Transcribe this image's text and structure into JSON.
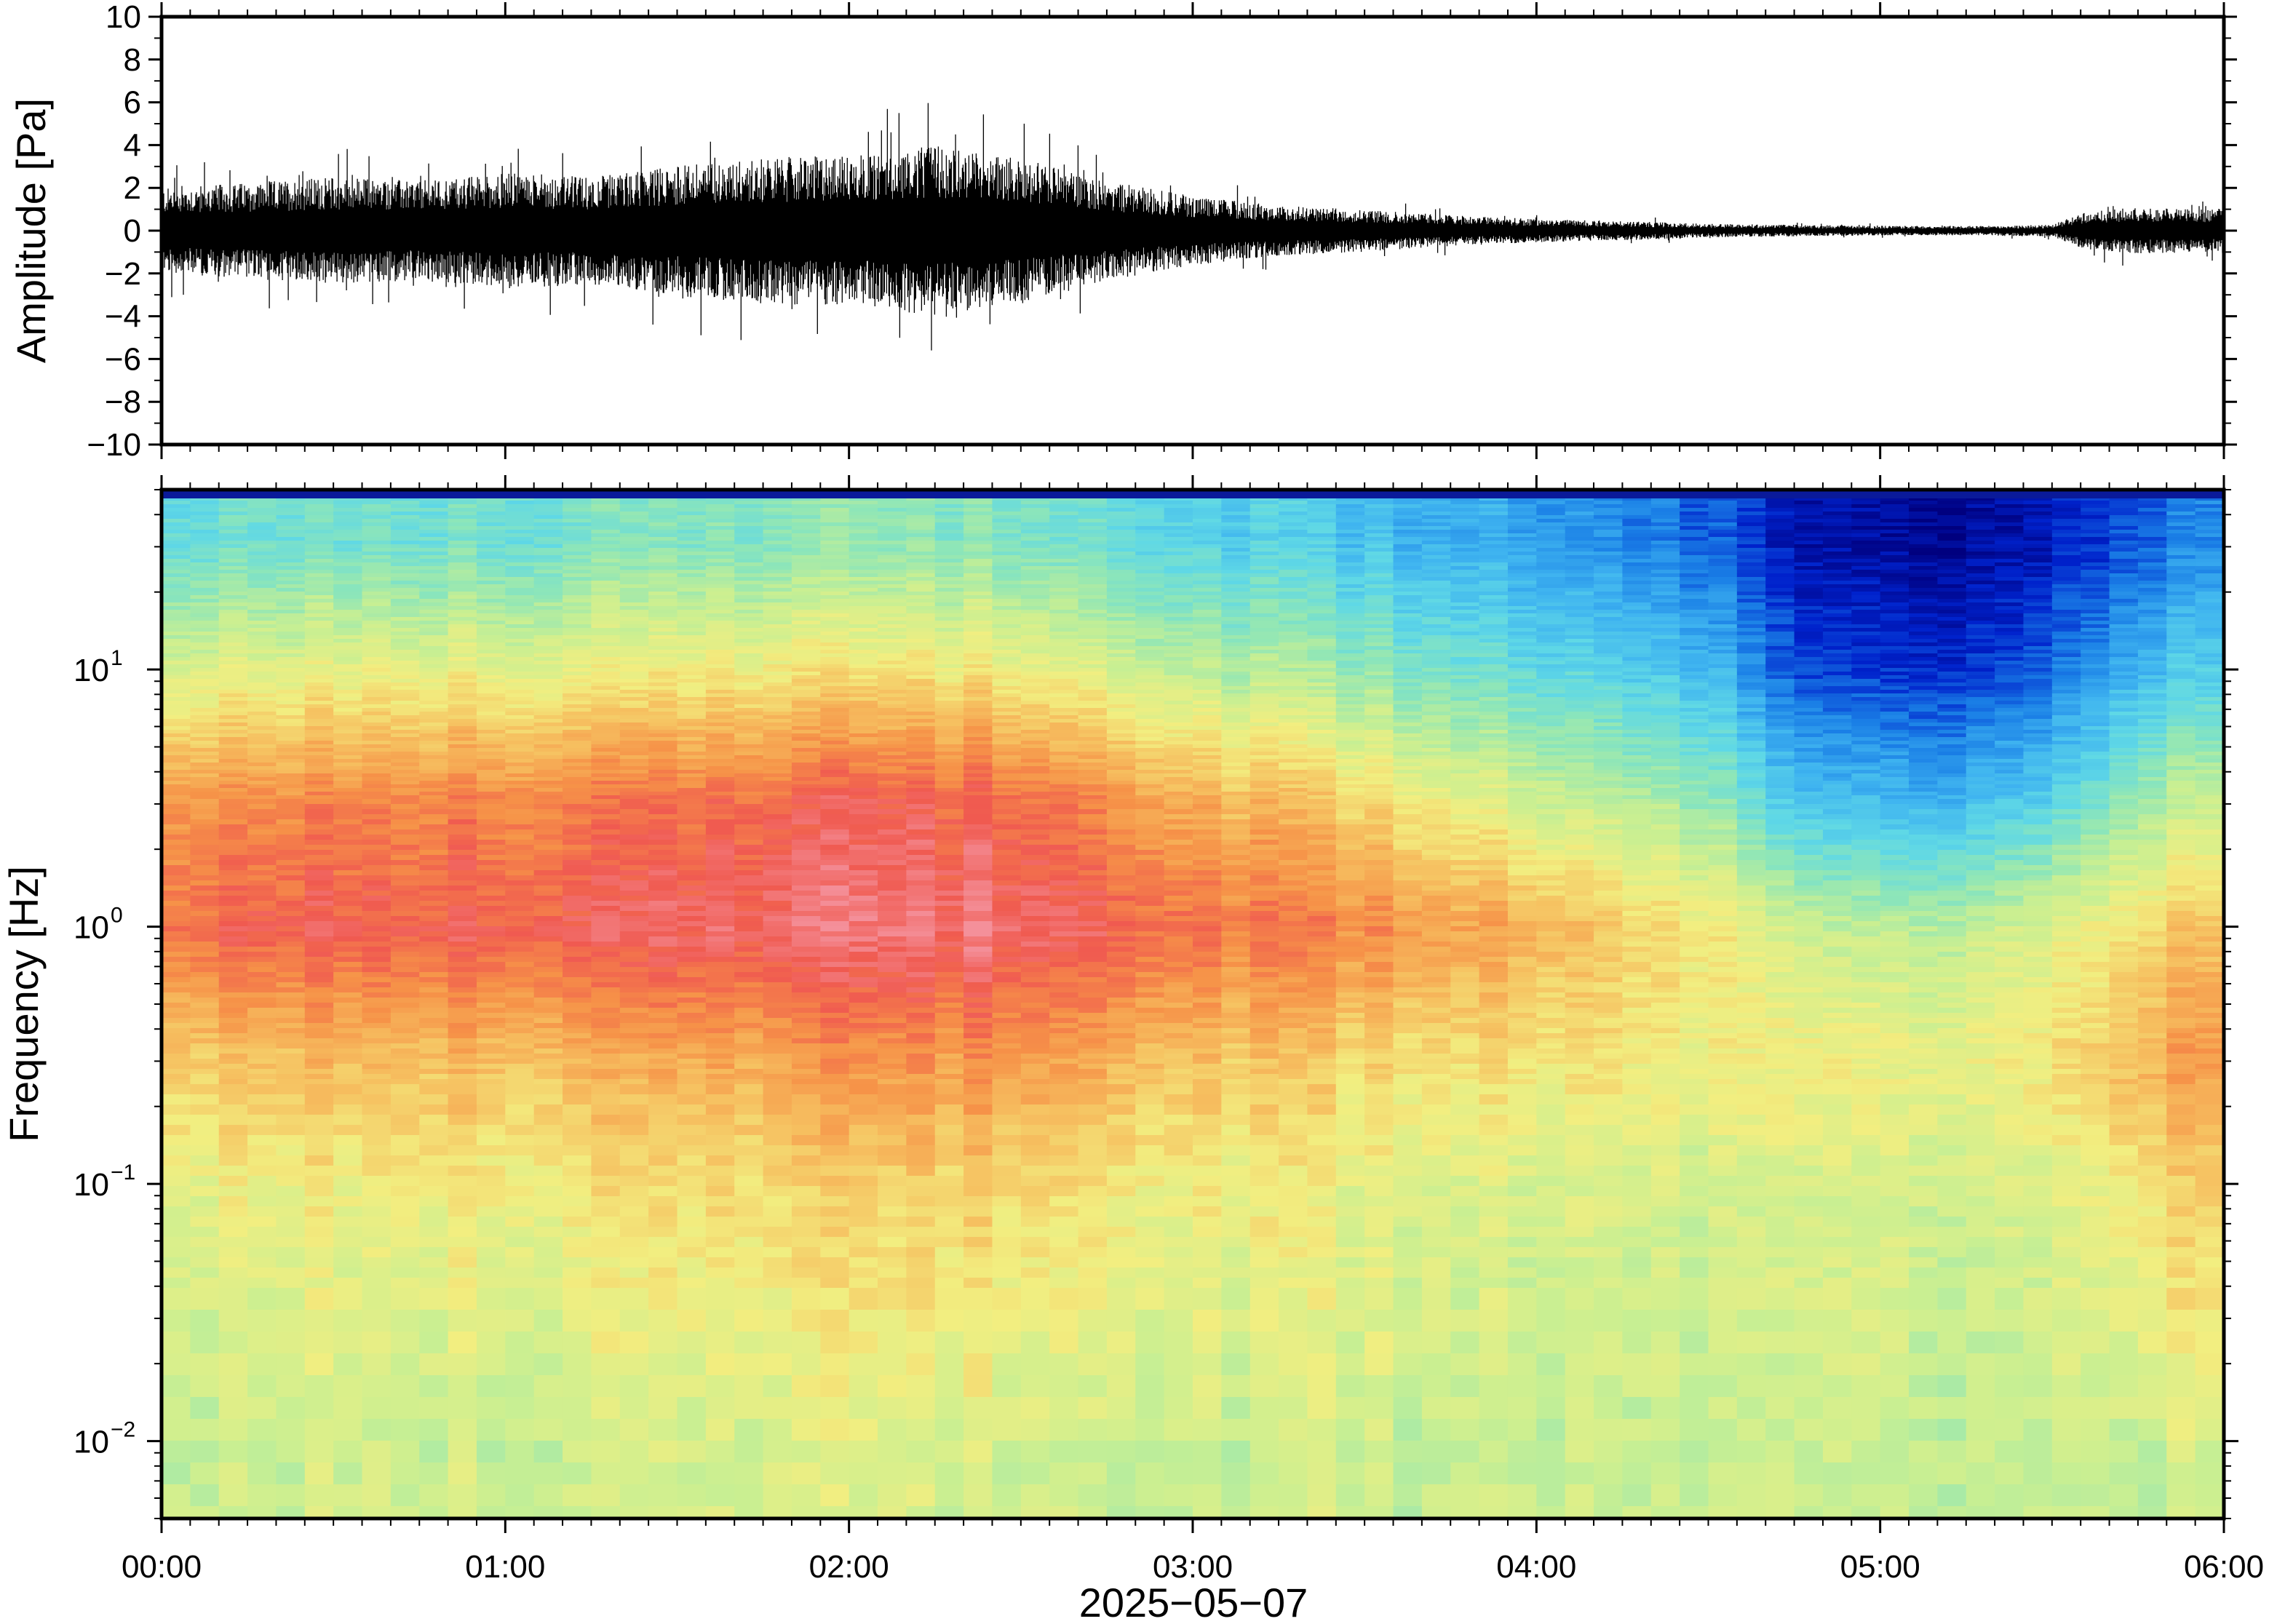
{
  "chart_data": [
    {
      "type": "line",
      "panel": "waveform",
      "ylabel": "Amplitude [Pa]",
      "ylim": [
        -10,
        10
      ],
      "yticks": [
        10,
        8,
        6,
        4,
        2,
        0,
        -2,
        -4,
        -6,
        -8,
        -10
      ],
      "ytick_labels": [
        "10",
        "8",
        "6",
        "4",
        "2",
        "0",
        "−2",
        "−4",
        "−6",
        "−8",
        "−10"
      ],
      "xlim_hours": [
        0,
        6
      ],
      "envelope": {
        "time_hours": [
          0.0,
          0.25,
          0.5,
          0.75,
          1.0,
          1.25,
          1.5,
          1.75,
          2.0,
          2.25,
          2.5,
          2.75,
          3.0,
          3.25,
          3.5,
          3.75,
          4.0,
          4.25,
          4.5,
          4.75,
          5.0,
          5.25,
          5.5,
          5.6,
          5.75,
          6.0
        ],
        "amplitude_pa": [
          2.2,
          2.5,
          2.8,
          2.6,
          3.0,
          2.8,
          3.4,
          3.8,
          3.9,
          4.4,
          3.8,
          2.6,
          1.8,
          1.3,
          1.1,
          0.8,
          0.6,
          0.5,
          0.35,
          0.3,
          0.25,
          0.25,
          0.3,
          1.0,
          1.2,
          1.1
        ]
      },
      "peak_max_pa": 4.5,
      "peak_min_pa": -5.6
    },
    {
      "type": "heatmap",
      "panel": "spectrogram",
      "ylabel": "Frequency [Hz]",
      "yscale": "log",
      "ylim_hz": [
        0.005,
        50
      ],
      "ytick_labels": [
        {
          "base": "10",
          "exp": "1",
          "value": 10
        },
        {
          "base": "10",
          "exp": "0",
          "value": 1
        },
        {
          "base": "10",
          "exp": "−1",
          "value": 0.1
        },
        {
          "base": "10",
          "exp": "−2",
          "value": 0.01
        }
      ],
      "colormap": [
        "#00007f",
        "#0022cc",
        "#1a7fe6",
        "#3fb4f0",
        "#5fd8e6",
        "#8ee6b8",
        "#c9ef92",
        "#f2ee80",
        "#f6c060",
        "#f69248",
        "#f05a50",
        "#f4909a"
      ],
      "time_hours": [
        0.0,
        0.25,
        0.5,
        0.75,
        1.0,
        1.25,
        1.5,
        1.75,
        2.0,
        2.25,
        2.5,
        2.75,
        3.0,
        3.25,
        3.5,
        3.75,
        4.0,
        4.25,
        4.5,
        4.75,
        5.0,
        5.25,
        5.5,
        5.75,
        6.0
      ],
      "log10_freq": [
        1.5,
        1.0,
        0.5,
        0.0,
        -0.5,
        -1.0,
        -1.5,
        -2.0,
        -2.3
      ],
      "intensity": [
        [
          0.4,
          0.6,
          0.82,
          0.88,
          0.72,
          0.62,
          0.58,
          0.55,
          0.56
        ],
        [
          0.4,
          0.6,
          0.82,
          0.9,
          0.72,
          0.62,
          0.58,
          0.55,
          0.56
        ],
        [
          0.4,
          0.6,
          0.82,
          0.9,
          0.73,
          0.62,
          0.58,
          0.55,
          0.56
        ],
        [
          0.4,
          0.61,
          0.83,
          0.9,
          0.73,
          0.63,
          0.58,
          0.55,
          0.56
        ],
        [
          0.41,
          0.61,
          0.84,
          0.91,
          0.74,
          0.64,
          0.59,
          0.55,
          0.56
        ],
        [
          0.42,
          0.62,
          0.85,
          0.92,
          0.75,
          0.65,
          0.6,
          0.56,
          0.56
        ],
        [
          0.43,
          0.63,
          0.86,
          0.93,
          0.76,
          0.66,
          0.61,
          0.56,
          0.56
        ],
        [
          0.44,
          0.64,
          0.88,
          0.94,
          0.78,
          0.67,
          0.62,
          0.57,
          0.57
        ],
        [
          0.45,
          0.65,
          0.9,
          0.96,
          0.8,
          0.68,
          0.63,
          0.58,
          0.57
        ],
        [
          0.45,
          0.65,
          0.9,
          0.97,
          0.81,
          0.69,
          0.63,
          0.58,
          0.57
        ],
        [
          0.43,
          0.63,
          0.88,
          0.95,
          0.8,
          0.68,
          0.62,
          0.57,
          0.56
        ],
        [
          0.4,
          0.59,
          0.83,
          0.92,
          0.77,
          0.66,
          0.61,
          0.56,
          0.56
        ],
        [
          0.36,
          0.54,
          0.77,
          0.88,
          0.73,
          0.64,
          0.6,
          0.56,
          0.56
        ],
        [
          0.33,
          0.5,
          0.72,
          0.85,
          0.7,
          0.62,
          0.59,
          0.55,
          0.55
        ],
        [
          0.3,
          0.46,
          0.67,
          0.82,
          0.68,
          0.6,
          0.58,
          0.55,
          0.55
        ],
        [
          0.27,
          0.42,
          0.62,
          0.79,
          0.67,
          0.59,
          0.57,
          0.55,
          0.55
        ],
        [
          0.24,
          0.38,
          0.57,
          0.76,
          0.66,
          0.58,
          0.56,
          0.55,
          0.55
        ],
        [
          0.2,
          0.34,
          0.52,
          0.7,
          0.65,
          0.58,
          0.56,
          0.55,
          0.55
        ],
        [
          0.16,
          0.3,
          0.48,
          0.66,
          0.63,
          0.57,
          0.56,
          0.55,
          0.55
        ],
        [
          0.04,
          0.12,
          0.3,
          0.55,
          0.62,
          0.57,
          0.56,
          0.55,
          0.55
        ],
        [
          0.03,
          0.1,
          0.28,
          0.52,
          0.62,
          0.57,
          0.56,
          0.55,
          0.55
        ],
        [
          0.04,
          0.12,
          0.3,
          0.55,
          0.63,
          0.58,
          0.56,
          0.55,
          0.55
        ],
        [
          0.07,
          0.16,
          0.35,
          0.6,
          0.66,
          0.59,
          0.57,
          0.55,
          0.55
        ],
        [
          0.16,
          0.3,
          0.5,
          0.68,
          0.76,
          0.66,
          0.62,
          0.56,
          0.55
        ],
        [
          0.2,
          0.34,
          0.55,
          0.72,
          0.8,
          0.69,
          0.64,
          0.57,
          0.55
        ]
      ]
    }
  ],
  "x_axis": {
    "tick_labels": [
      "00:00",
      "01:00",
      "02:00",
      "03:00",
      "04:00",
      "05:00",
      "06:00"
    ],
    "date_label": "2025−05−07"
  }
}
